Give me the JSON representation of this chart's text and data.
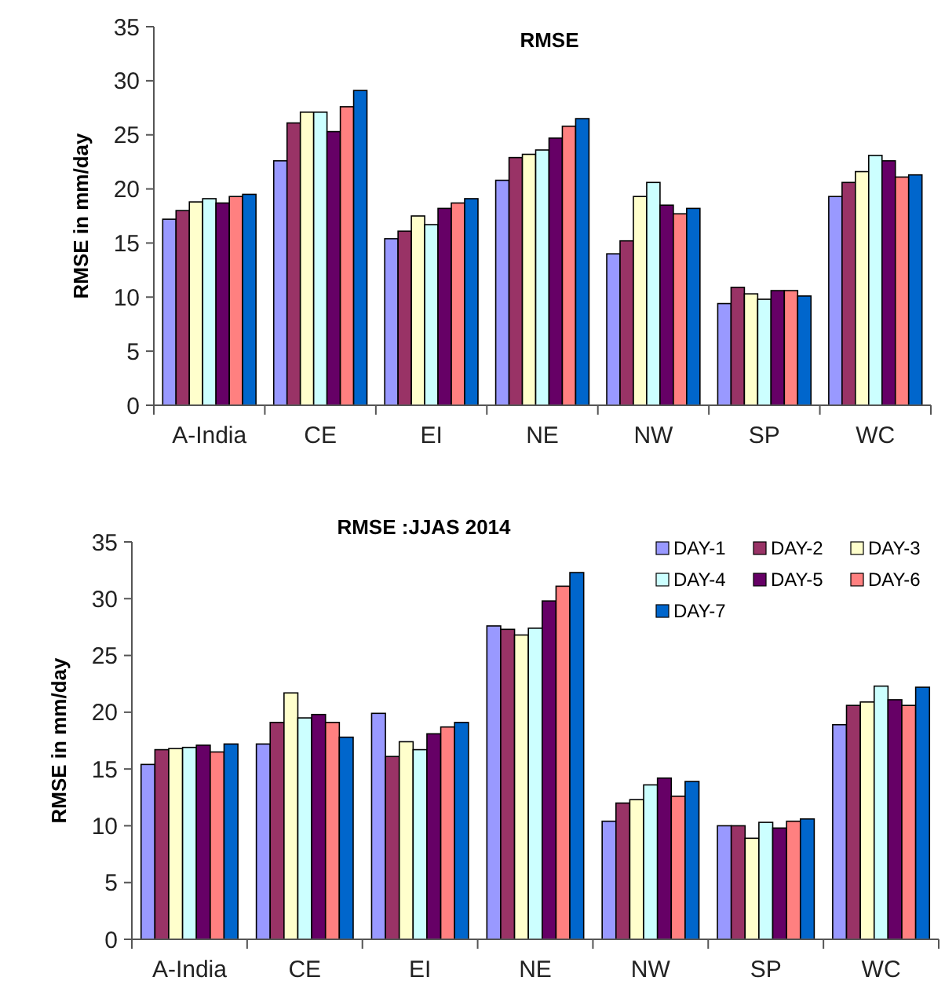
{
  "chart_data": [
    {
      "type": "bar",
      "title": "RMSE",
      "ylabel": "RMSE in mm/day",
      "categories": [
        "A-India",
        "CE",
        "EI",
        "NE",
        "NW",
        "SP",
        "WC"
      ],
      "ylim": [
        0,
        35
      ],
      "yticks": [
        0,
        5,
        10,
        15,
        20,
        25,
        30,
        35
      ],
      "grid": false,
      "legend": false,
      "series": [
        {
          "color": "#9999ff",
          "values": [
            17.2,
            22.6,
            15.4,
            20.8,
            14.0,
            9.4,
            19.3
          ]
        },
        {
          "color": "#993366",
          "values": [
            18.0,
            26.1,
            16.1,
            22.9,
            15.2,
            10.9,
            20.6
          ]
        },
        {
          "color": "#ffffcc",
          "values": [
            18.8,
            27.1,
            17.5,
            23.2,
            19.3,
            10.3,
            21.6
          ]
        },
        {
          "color": "#ccffff",
          "values": [
            19.1,
            27.1,
            16.7,
            23.6,
            20.6,
            9.8,
            23.1
          ]
        },
        {
          "color": "#660066",
          "values": [
            18.7,
            25.3,
            18.2,
            24.7,
            18.5,
            10.6,
            22.6
          ]
        },
        {
          "color": "#ff8080",
          "values": [
            19.3,
            27.6,
            18.7,
            25.8,
            17.7,
            10.6,
            21.1
          ]
        },
        {
          "color": "#0066cc",
          "values": [
            19.5,
            29.1,
            19.1,
            26.5,
            18.2,
            10.1,
            21.3
          ]
        }
      ]
    },
    {
      "type": "bar",
      "title": "RMSE :JJAS 2014",
      "ylabel": "RMSE in mm/day",
      "categories": [
        "A-India",
        "CE",
        "EI",
        "NE",
        "NW",
        "SP",
        "WC"
      ],
      "ylim": [
        0,
        35
      ],
      "yticks": [
        0,
        5,
        10,
        15,
        20,
        25,
        30,
        35
      ],
      "grid": false,
      "legend": "top right",
      "series": [
        {
          "name": "DAY-1",
          "color": "#9999ff",
          "values": [
            15.4,
            17.2,
            19.9,
            27.6,
            10.4,
            10.0,
            18.9
          ]
        },
        {
          "name": "DAY-2",
          "color": "#993366",
          "values": [
            16.7,
            19.1,
            16.1,
            27.3,
            12.0,
            10.0,
            20.6
          ]
        },
        {
          "name": "DAY-3",
          "color": "#ffffcc",
          "values": [
            16.8,
            21.7,
            17.4,
            26.8,
            12.3,
            8.9,
            20.9
          ]
        },
        {
          "name": "DAY-4",
          "color": "#ccffff",
          "values": [
            16.9,
            19.5,
            16.7,
            27.4,
            13.6,
            10.3,
            22.3
          ]
        },
        {
          "name": "DAY-5",
          "color": "#660066",
          "values": [
            17.1,
            19.8,
            18.1,
            29.8,
            14.2,
            9.8,
            21.1
          ]
        },
        {
          "name": "DAY-6",
          "color": "#ff8080",
          "values": [
            16.5,
            19.1,
            18.7,
            31.1,
            12.6,
            10.4,
            20.6
          ]
        },
        {
          "name": "DAY-7",
          "color": "#0066cc",
          "values": [
            17.2,
            17.8,
            19.1,
            32.3,
            13.9,
            10.6,
            22.2
          ]
        }
      ]
    }
  ]
}
